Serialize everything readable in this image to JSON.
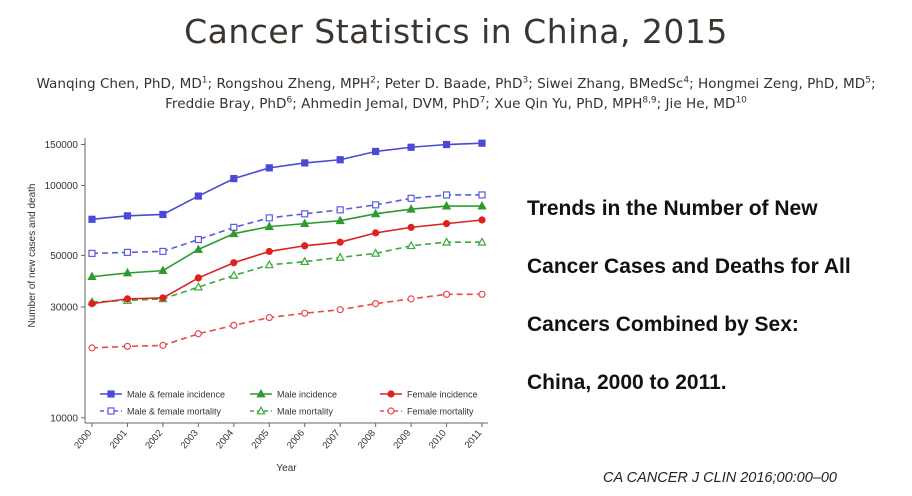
{
  "slide": {
    "title": "Cancer Statistics in China, 2015",
    "citation": "CA CANCER J CLIN 2016;00:00–00",
    "summary_lines": [
      "Trends in the Number of New",
      "Cancer Cases and Deaths for All",
      "Cancers Combined by Sex:",
      "China, 2000 to 2011."
    ]
  },
  "authors": [
    {
      "name": "Wanqing Chen, PhD, MD",
      "sup": "1",
      "sep": "; "
    },
    {
      "name": "Rongshou Zheng, MPH",
      "sup": "2",
      "sep": "; "
    },
    {
      "name": "Peter D. Baade, PhD",
      "sup": "3",
      "sep": "; "
    },
    {
      "name": "Siwei Zhang, BMedSc",
      "sup": "4",
      "sep": "; "
    },
    {
      "name": "Hongmei Zeng, PhD, MD",
      "sup": "5",
      "sep": ";"
    },
    {
      "name": "Freddie Bray, PhD",
      "sup": "6",
      "sep": "; "
    },
    {
      "name": "Ahmedin Jemal, DVM, PhD",
      "sup": "7",
      "sep": "; "
    },
    {
      "name": "Xue Qin Yu, PhD, MPH",
      "sup": "8,9",
      "sep": "; "
    },
    {
      "name": "Jie He, MD",
      "sup": "10",
      "sep": ""
    }
  ],
  "chart_data": {
    "type": "line",
    "title": "",
    "xlabel": "Year",
    "ylabel": "Number of new cases and death",
    "yscale": "log",
    "ylim": [
      9500,
      160000
    ],
    "yticks": [
      150000,
      100000,
      50000,
      30000,
      10000
    ],
    "x": [
      "2000",
      "2001",
      "2002",
      "2003",
      "2004",
      "2005",
      "2006",
      "2007",
      "2008",
      "2009",
      "2010",
      "2011"
    ],
    "legend_position": "bottom-inside",
    "grid": false,
    "series": [
      {
        "name": "Male & female incidence",
        "color": "#4a4ad6",
        "dash": false,
        "marker": "square-filled",
        "values": [
          71500,
          74000,
          75000,
          90000,
          107000,
          119000,
          125000,
          129000,
          140000,
          146000,
          150000,
          152000
        ]
      },
      {
        "name": "Male & female mortality",
        "color": "#5b5be0",
        "dash": true,
        "marker": "square-open",
        "values": [
          51000,
          51500,
          52000,
          58500,
          66000,
          72500,
          75500,
          78500,
          82500,
          88000,
          91000,
          91000
        ]
      },
      {
        "name": "Male incidence",
        "color": "#2e9a2e",
        "dash": false,
        "marker": "triangle-filled",
        "values": [
          40500,
          42000,
          43000,
          53000,
          62000,
          66500,
          68500,
          70500,
          75500,
          79000,
          81500,
          81500
        ]
      },
      {
        "name": "Male mortality",
        "color": "#3aa83a",
        "dash": true,
        "marker": "triangle-open",
        "values": [
          31500,
          32000,
          32500,
          36500,
          41000,
          45500,
          47000,
          49000,
          51000,
          55000,
          57000,
          57000
        ]
      },
      {
        "name": "Female incidence",
        "color": "#e02020",
        "dash": false,
        "marker": "circle-filled",
        "values": [
          31000,
          32500,
          32800,
          40000,
          46500,
          52000,
          55000,
          57000,
          62500,
          66000,
          68500,
          71000
        ]
      },
      {
        "name": "Female mortality",
        "color": "#e84a4a",
        "dash": true,
        "marker": "circle-open",
        "values": [
          20000,
          20300,
          20500,
          23000,
          25000,
          27000,
          28200,
          29200,
          31000,
          32500,
          34000,
          34000
        ]
      }
    ]
  }
}
